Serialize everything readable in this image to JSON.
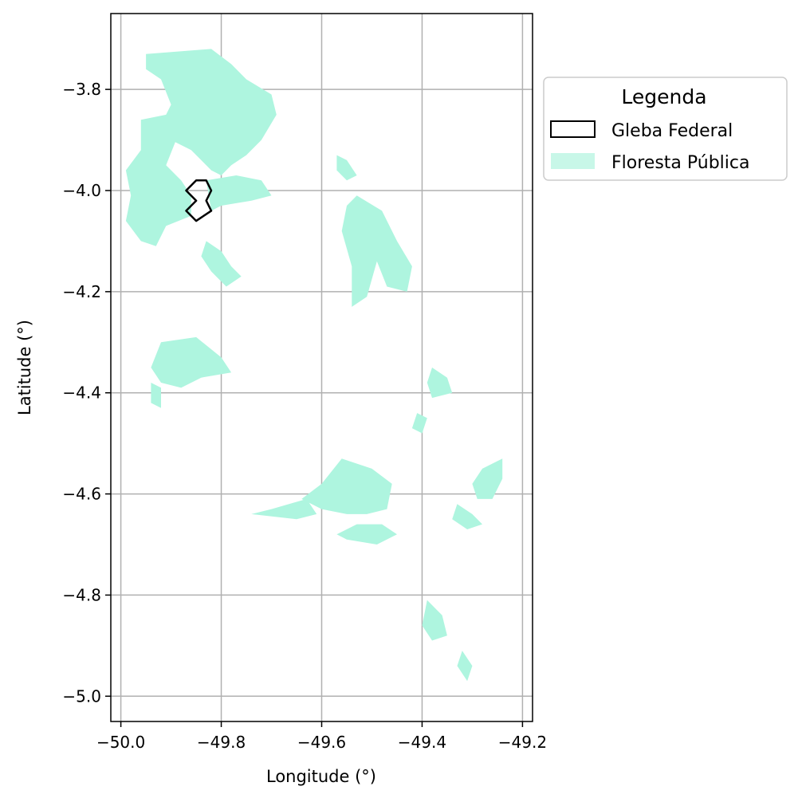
{
  "chart_data": {
    "type": "map",
    "xlabel": "Longitude (°)",
    "ylabel": "Latitude (°)",
    "xlim": [
      -50.02,
      -49.18
    ],
    "ylim": [
      -5.05,
      -3.65
    ],
    "xticks": [
      -50.0,
      -49.8,
      -49.6,
      -49.4,
      -49.2
    ],
    "xtick_labels": [
      "−50.0",
      "−49.8",
      "−49.6",
      "−49.4",
      "−49.2"
    ],
    "yticks": [
      -3.8,
      -4.0,
      -4.2,
      -4.4,
      -4.6,
      -4.8,
      -5.0
    ],
    "ytick_labels": [
      "−3.8",
      "−4.0",
      "−4.2",
      "−4.4",
      "−4.6",
      "−4.8",
      "−5.0"
    ],
    "grid": true,
    "legend": {
      "title": "Legenda",
      "placement": "outside right, top",
      "entries": [
        {
          "label": "Gleba Federal",
          "style": "outline",
          "color": "#000000"
        },
        {
          "label": "Floresta Pública",
          "style": "fill",
          "color": "#aef5df"
        }
      ]
    },
    "layers": {
      "floresta_publica": {
        "color": "#aef5df",
        "polygons": [
          [
            [
              -49.95,
              -3.73
            ],
            [
              -49.82,
              -3.72
            ],
            [
              -49.78,
              -3.75
            ],
            [
              -49.75,
              -3.78
            ],
            [
              -49.7,
              -3.81
            ],
            [
              -49.69,
              -3.85
            ],
            [
              -49.72,
              -3.9
            ],
            [
              -49.75,
              -3.93
            ],
            [
              -49.78,
              -3.95
            ],
            [
              -49.8,
              -3.97
            ],
            [
              -49.82,
              -3.96
            ],
            [
              -49.86,
              -3.92
            ],
            [
              -49.9,
              -3.9
            ],
            [
              -49.92,
              -3.87
            ],
            [
              -49.9,
              -3.83
            ],
            [
              -49.92,
              -3.78
            ],
            [
              -49.95,
              -3.76
            ]
          ],
          [
            [
              -49.96,
              -3.86
            ],
            [
              -49.91,
              -3.85
            ],
            [
              -49.89,
              -3.9
            ],
            [
              -49.91,
              -3.95
            ],
            [
              -49.88,
              -3.98
            ],
            [
              -49.86,
              -4.01
            ],
            [
              -49.86,
              -4.05
            ],
            [
              -49.91,
              -4.07
            ],
            [
              -49.93,
              -4.11
            ],
            [
              -49.96,
              -4.1
            ],
            [
              -49.99,
              -4.06
            ],
            [
              -49.98,
              -4.01
            ],
            [
              -49.99,
              -3.96
            ],
            [
              -49.96,
              -3.92
            ]
          ],
          [
            [
              -49.83,
              -3.98
            ],
            [
              -49.77,
              -3.97
            ],
            [
              -49.72,
              -3.98
            ],
            [
              -49.7,
              -4.01
            ],
            [
              -49.74,
              -4.02
            ],
            [
              -49.8,
              -4.03
            ],
            [
              -49.82,
              -4.04
            ]
          ],
          [
            [
              -49.83,
              -4.1
            ],
            [
              -49.8,
              -4.12
            ],
            [
              -49.78,
              -4.15
            ],
            [
              -49.76,
              -4.17
            ],
            [
              -49.79,
              -4.19
            ],
            [
              -49.82,
              -4.16
            ],
            [
              -49.84,
              -4.13
            ]
          ],
          [
            [
              -49.92,
              -4.3
            ],
            [
              -49.85,
              -4.29
            ],
            [
              -49.8,
              -4.33
            ],
            [
              -49.78,
              -4.36
            ],
            [
              -49.84,
              -4.37
            ],
            [
              -49.88,
              -4.39
            ],
            [
              -49.92,
              -4.38
            ],
            [
              -49.94,
              -4.35
            ]
          ],
          [
            [
              -49.94,
              -4.38
            ],
            [
              -49.92,
              -4.39
            ],
            [
              -49.92,
              -4.43
            ],
            [
              -49.94,
              -4.42
            ]
          ],
          [
            [
              -49.53,
              -4.01
            ],
            [
              -49.48,
              -4.04
            ],
            [
              -49.45,
              -4.1
            ],
            [
              -49.42,
              -4.15
            ],
            [
              -49.43,
              -4.2
            ],
            [
              -49.47,
              -4.19
            ],
            [
              -49.49,
              -4.14
            ],
            [
              -49.51,
              -4.21
            ],
            [
              -49.54,
              -4.23
            ],
            [
              -49.54,
              -4.15
            ],
            [
              -49.56,
              -4.08
            ],
            [
              -49.55,
              -4.03
            ]
          ],
          [
            [
              -49.57,
              -3.93
            ],
            [
              -49.55,
              -3.94
            ],
            [
              -49.53,
              -3.97
            ],
            [
              -49.55,
              -3.98
            ],
            [
              -49.57,
              -3.96
            ]
          ],
          [
            [
              -49.38,
              -4.35
            ],
            [
              -49.35,
              -4.37
            ],
            [
              -49.34,
              -4.4
            ],
            [
              -49.38,
              -4.41
            ],
            [
              -49.39,
              -4.38
            ]
          ],
          [
            [
              -49.41,
              -4.44
            ],
            [
              -49.39,
              -4.45
            ],
            [
              -49.4,
              -4.48
            ],
            [
              -49.42,
              -4.47
            ]
          ],
          [
            [
              -49.56,
              -4.53
            ],
            [
              -49.5,
              -4.55
            ],
            [
              -49.46,
              -4.58
            ],
            [
              -49.47,
              -4.63
            ],
            [
              -49.51,
              -4.64
            ],
            [
              -49.55,
              -4.64
            ],
            [
              -49.6,
              -4.63
            ],
            [
              -49.64,
              -4.61
            ],
            [
              -49.6,
              -4.58
            ]
          ],
          [
            [
              -49.63,
              -4.61
            ],
            [
              -49.7,
              -4.63
            ],
            [
              -49.74,
              -4.64
            ],
            [
              -49.65,
              -4.65
            ],
            [
              -49.61,
              -4.64
            ]
          ],
          [
            [
              -49.53,
              -4.66
            ],
            [
              -49.48,
              -4.66
            ],
            [
              -49.45,
              -4.68
            ],
            [
              -49.49,
              -4.7
            ],
            [
              -49.55,
              -4.69
            ],
            [
              -49.57,
              -4.68
            ]
          ],
          [
            [
              -49.24,
              -4.53
            ],
            [
              -49.28,
              -4.55
            ],
            [
              -49.3,
              -4.58
            ],
            [
              -49.29,
              -4.61
            ],
            [
              -49.26,
              -4.61
            ],
            [
              -49.24,
              -4.57
            ]
          ],
          [
            [
              -49.33,
              -4.62
            ],
            [
              -49.3,
              -4.64
            ],
            [
              -49.28,
              -4.66
            ],
            [
              -49.31,
              -4.67
            ],
            [
              -49.34,
              -4.65
            ]
          ],
          [
            [
              -49.39,
              -4.81
            ],
            [
              -49.36,
              -4.84
            ],
            [
              -49.35,
              -4.88
            ],
            [
              -49.38,
              -4.89
            ],
            [
              -49.4,
              -4.86
            ]
          ],
          [
            [
              -49.32,
              -4.91
            ],
            [
              -49.3,
              -4.94
            ],
            [
              -49.31,
              -4.97
            ],
            [
              -49.33,
              -4.94
            ]
          ]
        ]
      },
      "gleba_federal": {
        "color": "#000000",
        "polygons": [
          [
            [
              -49.83,
              -3.98
            ],
            [
              -49.82,
              -4.0
            ],
            [
              -49.83,
              -4.02
            ],
            [
              -49.82,
              -4.04
            ],
            [
              -49.85,
              -4.06
            ],
            [
              -49.87,
              -4.04
            ],
            [
              -49.85,
              -4.02
            ],
            [
              -49.87,
              -4.0
            ],
            [
              -49.85,
              -3.98
            ]
          ]
        ]
      }
    }
  }
}
